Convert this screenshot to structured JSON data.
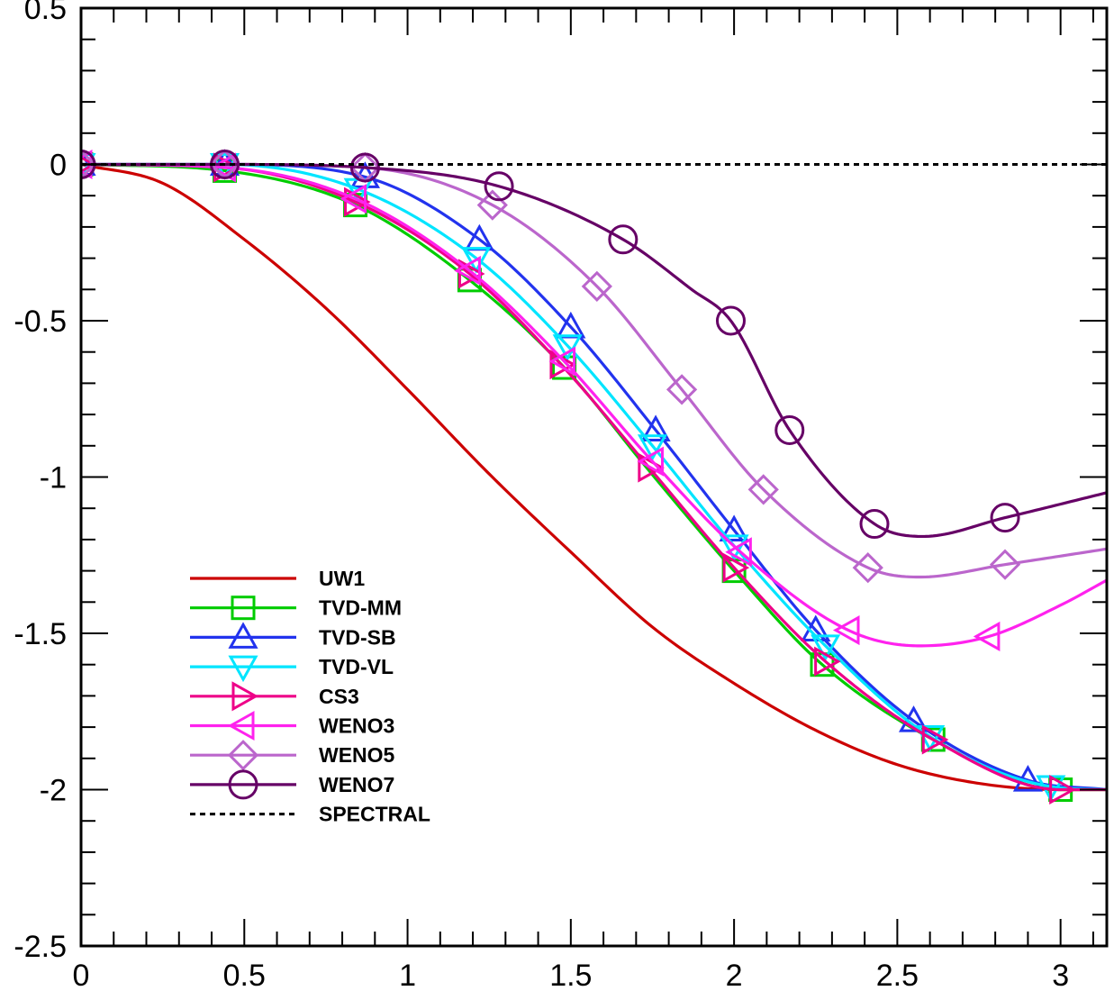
{
  "chart_data": {
    "type": "line",
    "title": "",
    "xlabel": "",
    "ylabel": "",
    "xlim": [
      0,
      3.14159
    ],
    "ylim": [
      -2.5,
      0.5
    ],
    "x_ticks": [
      0,
      0.5,
      1,
      1.5,
      2,
      2.5,
      3
    ],
    "x_tick_labels": [
      "0",
      "0.5",
      "1",
      "1.5",
      "2",
      "2.5",
      "3"
    ],
    "y_ticks": [
      0.5,
      0,
      -0.5,
      -1,
      -1.5,
      -2,
      -2.5
    ],
    "y_tick_labels": [
      "0.5",
      "0",
      "-0.5",
      "-1",
      "-1.5",
      "-2",
      "-2.5"
    ],
    "grid": false,
    "legend_position": "lower-left",
    "series": [
      {
        "name": "UW1",
        "color": "#cc0000",
        "marker": "none",
        "dash": "solid",
        "x": [
          0,
          0.25,
          0.5,
          0.75,
          1.0,
          1.25,
          1.5,
          1.75,
          2.0,
          2.25,
          2.5,
          2.75,
          3.0,
          3.14159
        ],
        "y": [
          0,
          -0.06,
          -0.24,
          -0.46,
          -0.72,
          -0.99,
          -1.24,
          -1.48,
          -1.66,
          -1.81,
          -1.92,
          -1.98,
          -2.0,
          -2.0
        ],
        "marker_x": []
      },
      {
        "name": "TVD-MM",
        "color": "#00cc00",
        "marker": "square",
        "dash": "solid",
        "x": [
          0,
          0.44,
          0.84,
          1.19,
          1.48,
          1.74,
          2.0,
          2.27,
          2.61,
          3.0,
          3.14159
        ],
        "y": [
          0,
          -0.02,
          -0.13,
          -0.37,
          -0.65,
          -0.98,
          -1.3,
          -1.6,
          -1.84,
          -2.0,
          -2.0
        ],
        "marker_x": [
          0,
          0.44,
          0.84,
          1.19,
          1.48,
          2.0,
          2.27,
          2.61,
          3.0
        ]
      },
      {
        "name": "TVD-SB",
        "color": "#2233ee",
        "marker": "triangle-up",
        "dash": "solid",
        "x": [
          0,
          0.44,
          0.87,
          1.22,
          1.5,
          1.76,
          2.0,
          2.25,
          2.55,
          2.9,
          3.14159
        ],
        "y": [
          0,
          0,
          -0.04,
          -0.24,
          -0.52,
          -0.85,
          -1.17,
          -1.49,
          -1.78,
          -1.97,
          -2.0
        ],
        "marker_x": [
          0,
          0.44,
          0.87,
          1.22,
          1.5,
          1.76,
          2.0,
          2.25,
          2.55,
          2.9
        ]
      },
      {
        "name": "TVD-VL",
        "color": "#00e5ff",
        "marker": "triangle-down",
        "dash": "solid",
        "x": [
          0,
          0.44,
          0.85,
          1.21,
          1.49,
          1.75,
          2.0,
          2.28,
          2.6,
          2.97,
          3.14159
        ],
        "y": [
          0,
          0,
          -0.08,
          -0.3,
          -0.58,
          -0.9,
          -1.22,
          -1.54,
          -1.83,
          -1.99,
          -2.0
        ],
        "marker_x": [
          0,
          0.44,
          0.85,
          1.21,
          1.49,
          1.75,
          2.0,
          2.28,
          2.6,
          2.97
        ]
      },
      {
        "name": "CS3",
        "color": "#ee0088",
        "marker": "triangle-right",
        "dash": "solid",
        "x": [
          0,
          0.44,
          0.84,
          1.19,
          1.47,
          1.74,
          2.0,
          2.28,
          2.61,
          3.0,
          3.14159
        ],
        "y": [
          0,
          -0.01,
          -0.12,
          -0.35,
          -0.64,
          -0.97,
          -1.29,
          -1.59,
          -1.84,
          -2.0,
          -2.0
        ],
        "marker_x": [
          0,
          0.44,
          0.84,
          1.19,
          1.47,
          1.74,
          2.0,
          2.28,
          2.61,
          3.0
        ]
      },
      {
        "name": "WENO3",
        "color": "#ff22ee",
        "marker": "triangle-left",
        "dash": "solid",
        "x": [
          0,
          0.44,
          0.84,
          1.19,
          1.48,
          1.75,
          2.02,
          2.35,
          2.57,
          2.78,
          3.0,
          3.14159
        ],
        "y": [
          0,
          -0.01,
          -0.11,
          -0.34,
          -0.63,
          -0.95,
          -1.24,
          -1.49,
          -1.54,
          -1.51,
          -1.41,
          -1.33
        ],
        "marker_x": [
          0,
          0.44,
          0.84,
          1.19,
          1.48,
          1.75,
          2.02,
          2.35,
          2.78
        ]
      },
      {
        "name": "WENO5",
        "color": "#bb66cc",
        "marker": "diamond",
        "dash": "solid",
        "x": [
          0,
          0.44,
          0.87,
          1.26,
          1.58,
          1.84,
          2.09,
          2.41,
          2.57,
          2.83,
          3.14159
        ],
        "y": [
          0,
          0,
          -0.01,
          -0.13,
          -0.39,
          -0.72,
          -1.04,
          -1.29,
          -1.32,
          -1.28,
          -1.23
        ],
        "marker_x": [
          0,
          0.44,
          0.87,
          1.26,
          1.58,
          1.84,
          2.09,
          2.41,
          2.83
        ]
      },
      {
        "name": "WENO7",
        "color": "#660066",
        "marker": "circle",
        "dash": "solid",
        "x": [
          0,
          0.44,
          0.87,
          1.28,
          1.66,
          1.87,
          1.99,
          2.17,
          2.43,
          2.58,
          2.83,
          3.14159
        ],
        "y": [
          0,
          0,
          -0.01,
          -0.07,
          -0.24,
          -0.4,
          -0.5,
          -0.85,
          -1.15,
          -1.19,
          -1.13,
          -1.05
        ],
        "marker_x": [
          0,
          0.44,
          0.87,
          1.28,
          1.66,
          1.99,
          2.17,
          2.43,
          2.83
        ]
      },
      {
        "name": "SPECTRAL",
        "color": "#000000",
        "marker": "none",
        "dash": "dashed",
        "x": [
          0,
          3.14159
        ],
        "y": [
          0,
          0
        ],
        "marker_x": []
      }
    ]
  }
}
